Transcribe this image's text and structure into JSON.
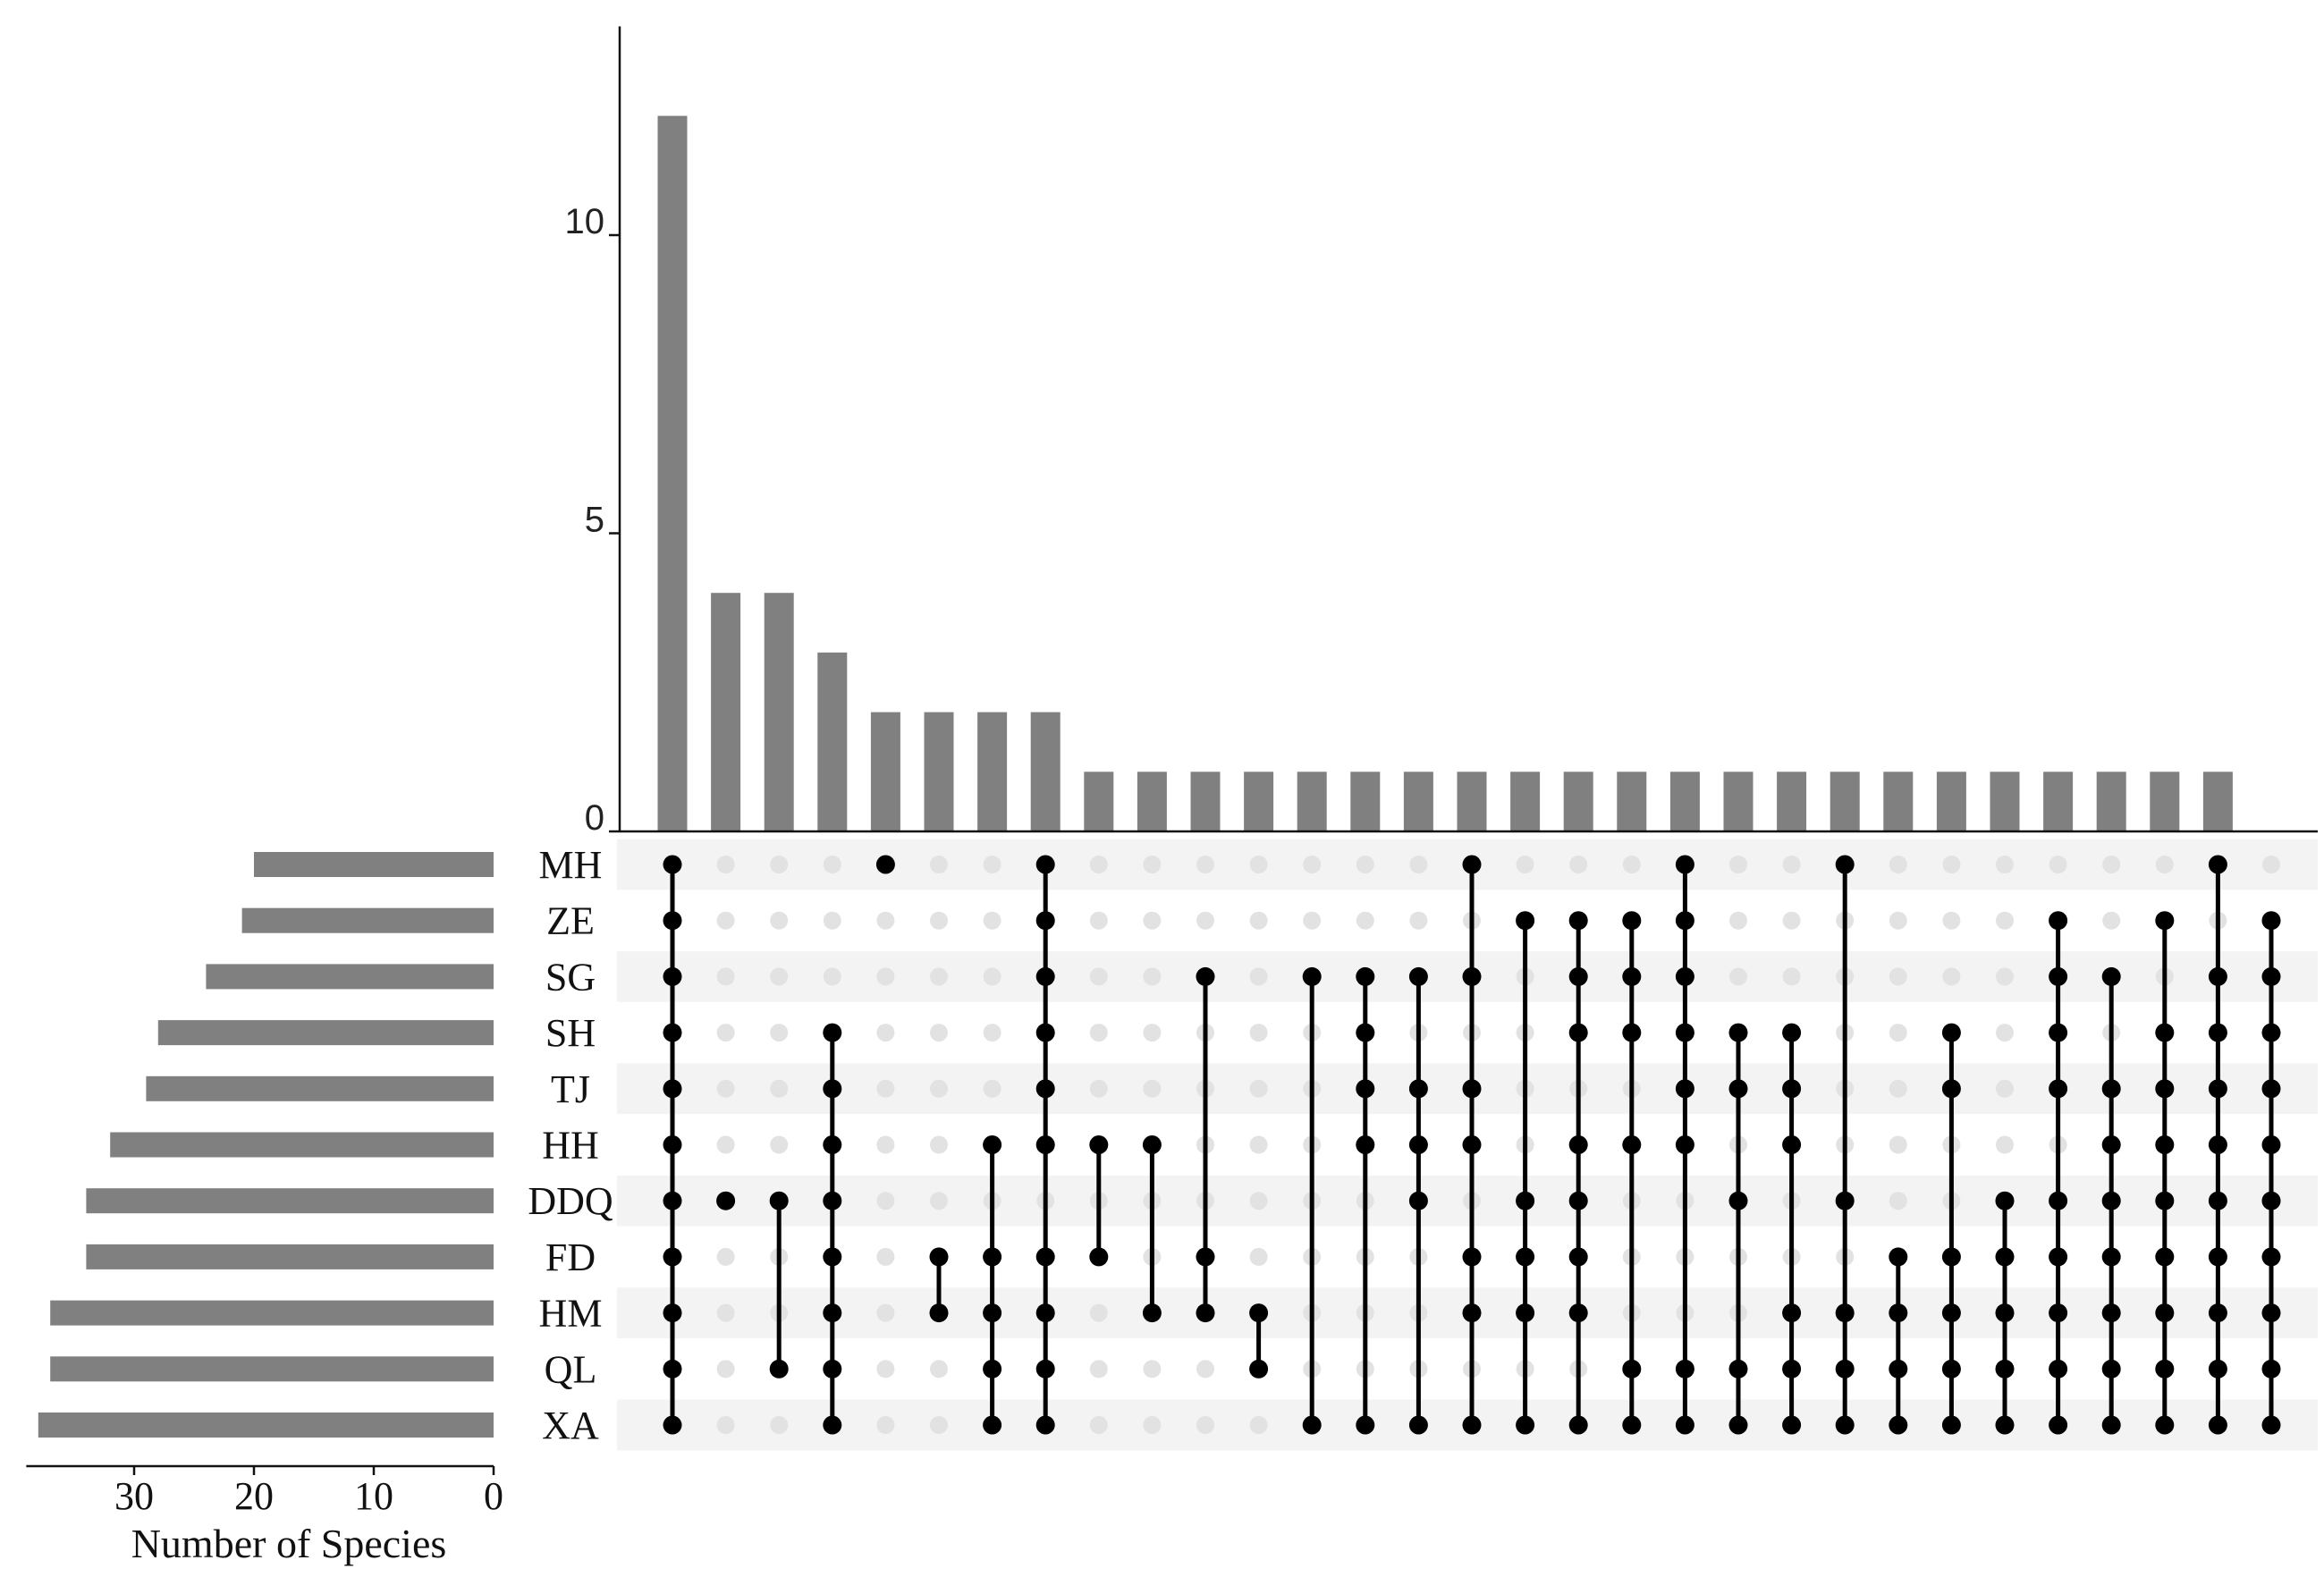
{
  "chart_data": [
    {
      "type": "bar",
      "orientation": "vertical",
      "ylim": [
        0,
        13.5
      ],
      "yticks": [
        "0",
        "5",
        "10"
      ],
      "values": [
        12,
        4,
        4,
        3,
        2,
        2,
        2,
        2,
        1,
        1,
        1,
        1,
        1,
        1,
        1,
        1,
        1,
        1,
        1,
        1,
        1,
        1,
        1,
        1,
        1,
        1,
        1,
        1,
        1,
        1
      ]
    },
    {
      "type": "bar",
      "orientation": "horizontal",
      "xlabel": "Number of Species",
      "xticks": [
        "30",
        "20",
        "10",
        "0"
      ],
      "xlim": [
        0,
        39
      ],
      "categories": [
        "MH",
        "ZE",
        "SG",
        "SH",
        "TJ",
        "HH",
        "DDQ",
        "FD",
        "HM",
        "QL",
        "XA"
      ],
      "values": [
        20,
        21,
        24,
        28,
        29,
        32,
        34,
        34,
        37,
        37,
        38
      ]
    },
    {
      "type": "matrix",
      "sets": [
        "MH",
        "ZE",
        "SG",
        "SH",
        "TJ",
        "HH",
        "DDQ",
        "FD",
        "HM",
        "QL",
        "XA"
      ],
      "intersections": [
        [
          "MH",
          "ZE",
          "SG",
          "SH",
          "TJ",
          "HH",
          "DDQ",
          "FD",
          "HM",
          "QL",
          "XA"
        ],
        [
          "DDQ"
        ],
        [
          "DDQ",
          "QL"
        ],
        [
          "SH",
          "TJ",
          "HH",
          "DDQ",
          "FD",
          "HM",
          "QL",
          "XA"
        ],
        [
          "MH"
        ],
        [
          "FD",
          "HM"
        ],
        [
          "HH",
          "FD",
          "HM",
          "QL",
          "XA"
        ],
        [
          "MH",
          "ZE",
          "SG",
          "SH",
          "TJ",
          "HH",
          "FD",
          "HM",
          "QL",
          "XA"
        ],
        [
          "HH",
          "FD"
        ],
        [
          "HH",
          "HM"
        ],
        [
          "SG",
          "FD",
          "HM"
        ],
        [
          "HM",
          "QL"
        ],
        [
          "SG",
          "XA"
        ],
        [
          "SG",
          "SH",
          "TJ",
          "HH",
          "XA"
        ],
        [
          "SG",
          "TJ",
          "HH",
          "DDQ",
          "XA"
        ],
        [
          "MH",
          "SG",
          "TJ",
          "HH",
          "FD",
          "HM",
          "XA"
        ],
        [
          "ZE",
          "DDQ",
          "FD",
          "HM",
          "XA"
        ],
        [
          "ZE",
          "SG",
          "SH",
          "HH",
          "DDQ",
          "FD",
          "HM",
          "XA"
        ],
        [
          "ZE",
          "SG",
          "SH",
          "HH",
          "QL",
          "XA"
        ],
        [
          "MH",
          "ZE",
          "SG",
          "SH",
          "TJ",
          "HH",
          "QL",
          "XA"
        ],
        [
          "SH",
          "TJ",
          "DDQ",
          "QL",
          "XA"
        ],
        [
          "SH",
          "TJ",
          "HH",
          "HM",
          "QL",
          "XA"
        ],
        [
          "MH",
          "DDQ",
          "HM",
          "QL",
          "XA"
        ],
        [
          "FD",
          "HM",
          "QL",
          "XA"
        ],
        [
          "SH",
          "TJ",
          "FD",
          "HM",
          "QL",
          "XA"
        ],
        [
          "DDQ",
          "FD",
          "HM",
          "QL",
          "XA"
        ],
        [
          "ZE",
          "SG",
          "SH",
          "TJ",
          "DDQ",
          "FD",
          "HM",
          "QL",
          "XA"
        ],
        [
          "SG",
          "TJ",
          "HH",
          "DDQ",
          "FD",
          "HM",
          "QL",
          "XA"
        ],
        [
          "ZE",
          "SH",
          "TJ",
          "HH",
          "DDQ",
          "FD",
          "HM",
          "QL",
          "XA"
        ],
        [
          "MH",
          "SG",
          "SH",
          "TJ",
          "HH",
          "DDQ",
          "FD",
          "HM",
          "QL",
          "XA"
        ],
        [
          "ZE",
          "SG",
          "SH",
          "TJ",
          "HH",
          "DDQ",
          "FD",
          "HM",
          "QL",
          "XA"
        ]
      ]
    }
  ],
  "colors": {
    "bar": "#808080",
    "dot_active": "#000000",
    "dot_inactive": "#e2e2e2",
    "stripe": "#f3f3f3",
    "axis": "#111111"
  }
}
